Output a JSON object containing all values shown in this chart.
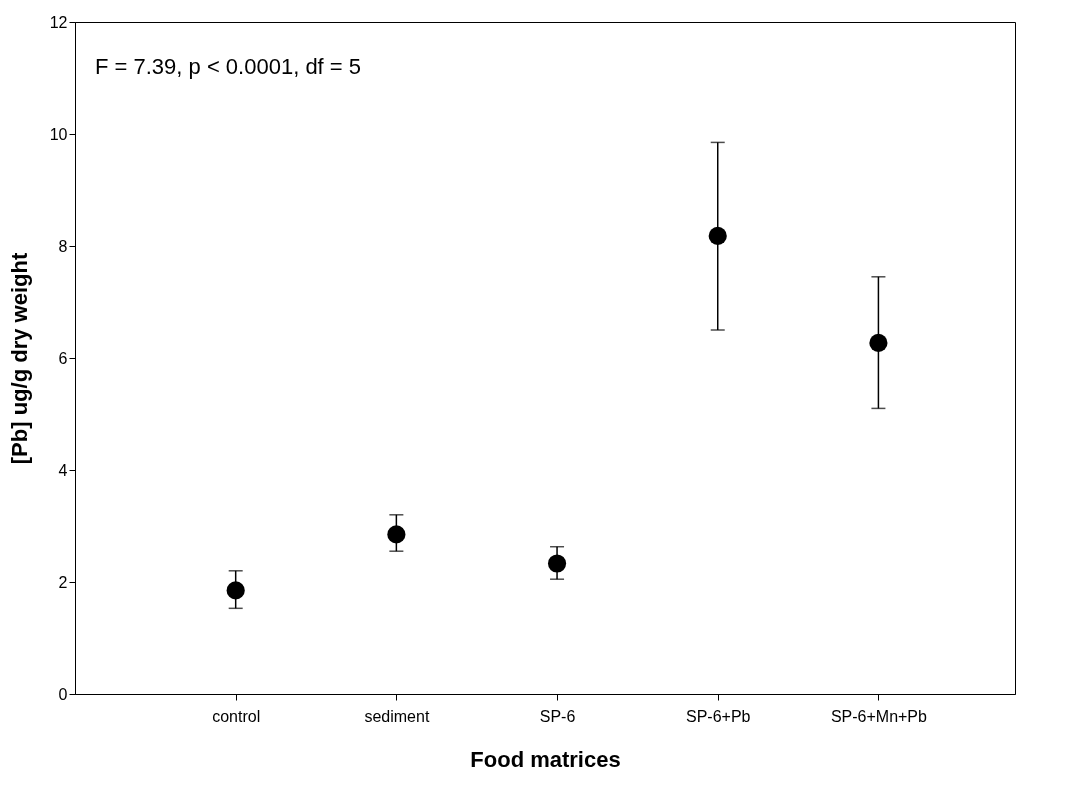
{
  "chart_data": {
    "type": "scatter",
    "xlabel": "Food matrices",
    "ylabel": "[Pb] ug/g dry weight",
    "categories": [
      "control",
      "sediment",
      "SP-6",
      "SP-6+Pb",
      "SP-6+Mn+Pb"
    ],
    "values": [
      1.85,
      2.85,
      2.33,
      8.18,
      6.27
    ],
    "errors": [
      [
        1.53,
        2.2
      ],
      [
        2.55,
        3.2
      ],
      [
        2.05,
        2.63
      ],
      [
        6.5,
        9.85
      ],
      [
        5.1,
        7.45
      ]
    ],
    "color": "#000000",
    "marker": "circle",
    "ylim": [
      0,
      12
    ],
    "yticks": [
      0,
      2,
      4,
      6,
      8,
      10,
      12
    ],
    "grid": false,
    "annotations": [
      "F = 7.39, p < 0.0001, df = 5"
    ]
  }
}
